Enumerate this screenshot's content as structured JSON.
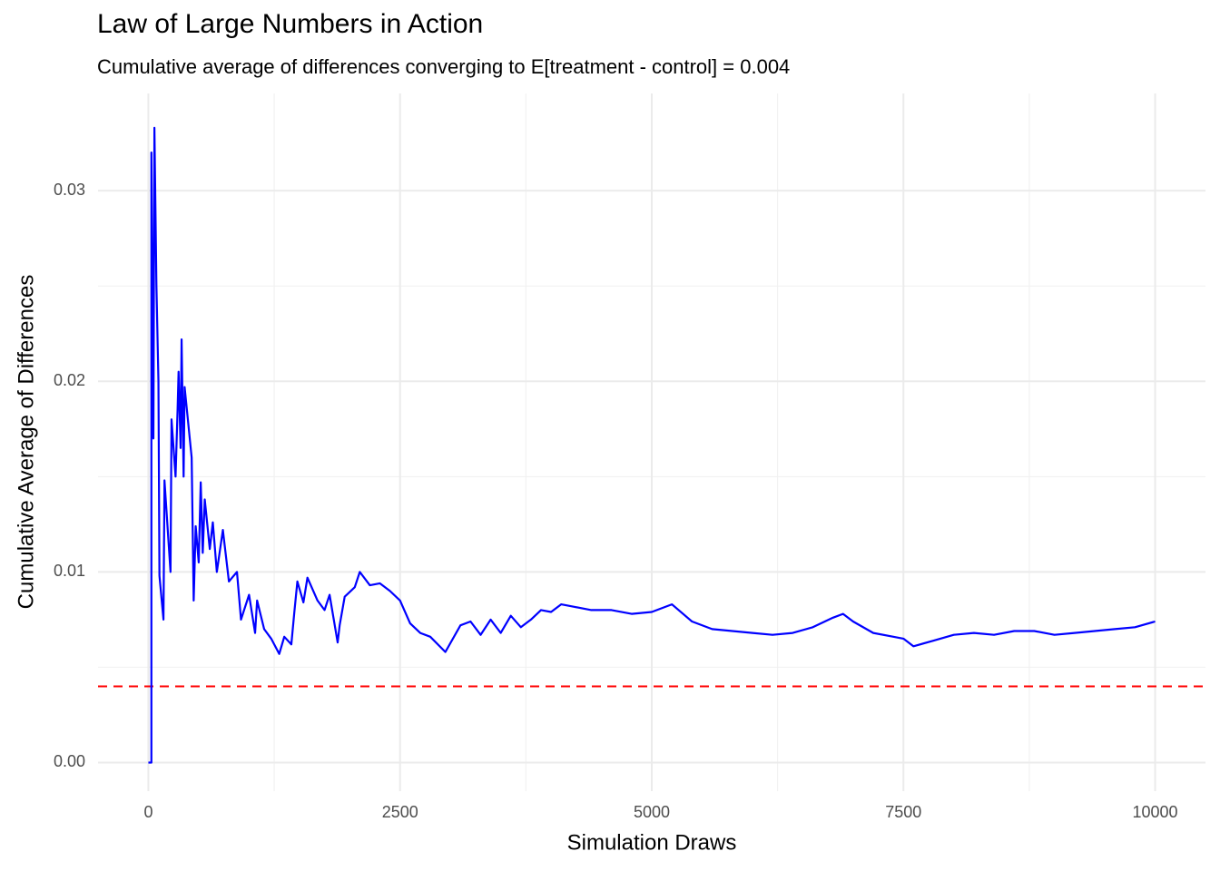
{
  "chart_data": {
    "type": "line",
    "title": "Law of Large Numbers in Action",
    "subtitle": "Cumulative average of differences converging to E[treatment - control] = 0.004",
    "x_label": "Simulation Draws",
    "y_label": "Cumulative Average of Differences",
    "x": [
      0,
      30,
      30,
      50,
      60,
      80,
      100,
      110,
      150,
      160,
      220,
      230,
      270,
      290,
      300,
      320,
      330,
      350,
      360,
      430,
      450,
      470,
      500,
      520,
      540,
      560,
      610,
      640,
      680,
      740,
      800,
      880,
      920,
      1000,
      1060,
      1080,
      1150,
      1220,
      1300,
      1350,
      1420,
      1450,
      1480,
      1540,
      1580,
      1680,
      1750,
      1800,
      1880,
      1900,
      1950,
      2050,
      2100,
      2200,
      2300,
      2400,
      2500,
      2600,
      2700,
      2800,
      2950,
      3100,
      3200,
      3300,
      3400,
      3500,
      3600,
      3700,
      3800,
      3900,
      4000,
      4100,
      4200,
      4400,
      4600,
      4800,
      5000,
      5200,
      5400,
      5600,
      5800,
      6000,
      6200,
      6400,
      6600,
      6800,
      6900,
      7000,
      7200,
      7400,
      7500,
      7600,
      7800,
      8000,
      8200,
      8400,
      8600,
      8800,
      9000,
      9200,
      9400,
      9600,
      9800,
      10000
    ],
    "series": [
      {
        "color": "#0000ff",
        "values": [
          0,
          0,
          0.032,
          0.017,
          0.0333,
          0.025,
          0.02,
          0.0098,
          0.0075,
          0.0148,
          0.01,
          0.018,
          0.015,
          0.0185,
          0.0205,
          0.0165,
          0.0222,
          0.015,
          0.0197,
          0.016,
          0.0085,
          0.0124,
          0.0105,
          0.0147,
          0.011,
          0.0138,
          0.0112,
          0.0126,
          0.01,
          0.0122,
          0.0095,
          0.01,
          0.0075,
          0.0088,
          0.0068,
          0.0085,
          0.007,
          0.0065,
          0.0057,
          0.0066,
          0.0062,
          0.0079,
          0.0095,
          0.0084,
          0.0097,
          0.0085,
          0.008,
          0.0088,
          0.0063,
          0.0072,
          0.0087,
          0.0092,
          0.01,
          0.0093,
          0.0094,
          0.009,
          0.0085,
          0.0073,
          0.0068,
          0.0066,
          0.0058,
          0.0072,
          0.0074,
          0.0067,
          0.0075,
          0.0068,
          0.0077,
          0.0071,
          0.0075,
          0.008,
          0.0079,
          0.0083,
          0.0082,
          0.008,
          0.008,
          0.0078,
          0.0079,
          0.0083,
          0.0074,
          0.007,
          0.0069,
          0.0068,
          0.0067,
          0.0068,
          0.0071,
          0.0076,
          0.0078,
          0.0074,
          0.0068,
          0.0066,
          0.0065,
          0.0061,
          0.0064,
          0.0067,
          0.0068,
          0.0067,
          0.0069,
          0.0069,
          0.0067,
          0.0068,
          0.0069,
          0.007,
          0.0071,
          0.0074
        ]
      }
    ],
    "hline": {
      "value": 0.004,
      "color": "#ff0000"
    },
    "xlim": [
      -500,
      10500
    ],
    "ylim": [
      -0.0015,
      0.0351
    ],
    "xticks": [
      0,
      2500,
      5000,
      7500,
      10000
    ],
    "yticks": [
      {
        "value": 0,
        "label": "0.00"
      },
      0.01,
      0.02,
      0.03
    ],
    "grid": true
  }
}
